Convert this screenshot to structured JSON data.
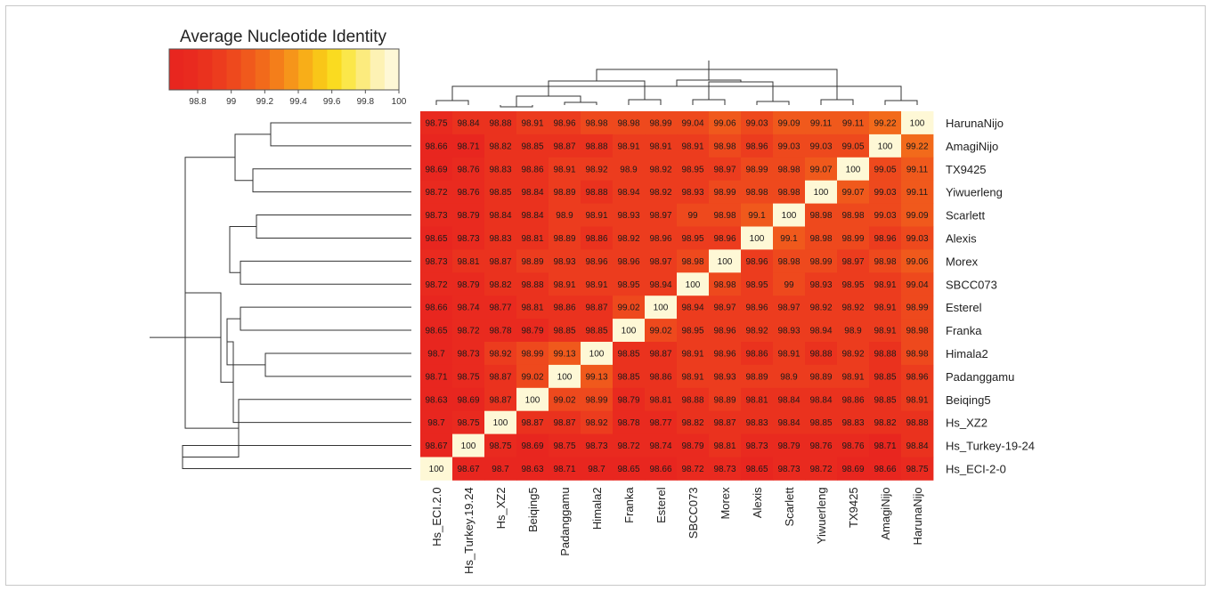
{
  "chart_data": {
    "type": "heatmap",
    "legend": {
      "title": "Average Nucleotide Identity",
      "tick_labels": [
        "98.8",
        "99",
        "99.2",
        "99.4",
        "99.6",
        "99.8",
        "100"
      ],
      "range": [
        98.63,
        100
      ],
      "palette": [
        "#e8261f",
        "#e92a1f",
        "#ea321e",
        "#ec3c1e",
        "#ee491d",
        "#f0591c",
        "#f26a1b",
        "#f47e1a",
        "#f6951a",
        "#f8ae18",
        "#f9c618",
        "#fadb20",
        "#fbe74a",
        "#fceb7e",
        "#fdf2b4",
        "#fef8d6"
      ]
    },
    "row_labels": [
      "HarunaNijo",
      "AmagiNijo",
      "TX9425",
      "Yiwuerleng",
      "Scarlett",
      "Alexis",
      "Morex",
      "SBCC073",
      "Esterel",
      "Franka",
      "Himala2",
      "Padanggamu",
      "Beiqing5",
      "Hs_XZ2",
      "Hs_Turkey-19-24",
      "Hs_ECI-2-0"
    ],
    "col_labels": [
      "Hs_ECI.2.0",
      "Hs_Turkey.19.24",
      "Hs_XZ2",
      "Beiqing5",
      "Padanggamu",
      "Himala2",
      "Franka",
      "Esterel",
      "SBCC073",
      "Morex",
      "Alexis",
      "Scarlett",
      "Yiwuerleng",
      "TX9425",
      "AmagiNijo",
      "HarunaNijo"
    ],
    "cell_text": [
      [
        "98.75",
        "98.84",
        "98.88",
        "98.91",
        "98.96",
        "98.98",
        "98.98",
        "98.99",
        "99.04",
        "99.06",
        "99.03",
        "99.09",
        "99.11",
        "99.11",
        "99.22",
        "100"
      ],
      [
        "98.66",
        "98.71",
        "98.82",
        "98.85",
        "98.87",
        "98.88",
        "98.91",
        "98.91",
        "98.91",
        "98.98",
        "98.96",
        "99.03",
        "99.03",
        "99.05",
        "100",
        "99.22"
      ],
      [
        "98.69",
        "98.76",
        "98.83",
        "98.86",
        "98.91",
        "98.92",
        "98.9",
        "98.92",
        "98.95",
        "98.97",
        "98.99",
        "98.98",
        "99.07",
        "100",
        "99.05",
        "99.11"
      ],
      [
        "98.72",
        "98.76",
        "98.85",
        "98.84",
        "98.89",
        "98.88",
        "98.94",
        "98.92",
        "98.93",
        "98.99",
        "98.98",
        "98.98",
        "100",
        "99.07",
        "99.03",
        "99.11"
      ],
      [
        "98.73",
        "98.79",
        "98.84",
        "98.84",
        "98.9",
        "98.91",
        "98.93",
        "98.97",
        "99",
        "98.98",
        "99.1",
        "100",
        "98.98",
        "98.98",
        "99.03",
        "99.09"
      ],
      [
        "98.65",
        "98.73",
        "98.83",
        "98.81",
        "98.89",
        "98.86",
        "98.92",
        "98.96",
        "98.95",
        "98.96",
        "100",
        "99.1",
        "98.98",
        "98.99",
        "98.96",
        "99.03"
      ],
      [
        "98.73",
        "98.81",
        "98.87",
        "98.89",
        "98.93",
        "98.96",
        "98.96",
        "98.97",
        "98.98",
        "100",
        "98.96",
        "98.98",
        "98.99",
        "98.97",
        "98.98",
        "99.06"
      ],
      [
        "98.72",
        "98.79",
        "98.82",
        "98.88",
        "98.91",
        "98.91",
        "98.95",
        "98.94",
        "100",
        "98.98",
        "98.95",
        "99",
        "98.93",
        "98.95",
        "98.91",
        "99.04"
      ],
      [
        "98.66",
        "98.74",
        "98.77",
        "98.81",
        "98.86",
        "98.87",
        "99.02",
        "100",
        "98.94",
        "98.97",
        "98.96",
        "98.97",
        "98.92",
        "98.92",
        "98.91",
        "98.99"
      ],
      [
        "98.65",
        "98.72",
        "98.78",
        "98.79",
        "98.85",
        "98.85",
        "100",
        "99.02",
        "98.95",
        "98.96",
        "98.92",
        "98.93",
        "98.94",
        "98.9",
        "98.91",
        "98.98"
      ],
      [
        "98.7",
        "98.73",
        "98.92",
        "98.99",
        "99.13",
        "100",
        "98.85",
        "98.87",
        "98.91",
        "98.96",
        "98.86",
        "98.91",
        "98.88",
        "98.92",
        "98.88",
        "98.98"
      ],
      [
        "98.71",
        "98.75",
        "98.87",
        "99.02",
        "100",
        "99.13",
        "98.85",
        "98.86",
        "98.91",
        "98.93",
        "98.89",
        "98.9",
        "98.89",
        "98.91",
        "98.85",
        "98.96"
      ],
      [
        "98.63",
        "98.69",
        "98.87",
        "100",
        "99.02",
        "98.99",
        "98.79",
        "98.81",
        "98.88",
        "98.89",
        "98.81",
        "98.84",
        "98.84",
        "98.86",
        "98.85",
        "98.91"
      ],
      [
        "98.7",
        "98.75",
        "100",
        "98.87",
        "98.87",
        "98.92",
        "98.78",
        "98.77",
        "98.82",
        "98.87",
        "98.83",
        "98.84",
        "98.85",
        "98.83",
        "98.82",
        "98.88"
      ],
      [
        "98.67",
        "100",
        "98.75",
        "98.69",
        "98.75",
        "98.73",
        "98.72",
        "98.74",
        "98.79",
        "98.81",
        "98.73",
        "98.79",
        "98.76",
        "98.76",
        "98.71",
        "98.84"
      ],
      [
        "100",
        "98.67",
        "98.7",
        "98.63",
        "98.71",
        "98.7",
        "98.65",
        "98.66",
        "98.72",
        "98.73",
        "98.65",
        "98.73",
        "98.72",
        "98.69",
        "98.66",
        "98.75"
      ]
    ],
    "col_dendrogram_merges": [
      [
        0,
        1
      ],
      [
        2,
        3
      ],
      [
        4,
        5
      ],
      [
        14,
        15
      ],
      [
        12,
        13
      ],
      [
        10,
        11
      ],
      [
        8,
        9
      ],
      [
        6,
        7
      ],
      [
        17,
        18
      ],
      [
        16,
        19
      ],
      [
        21,
        22
      ],
      [
        24,
        23
      ],
      [
        26,
        25
      ],
      [
        27,
        20
      ],
      [
        28,
        28
      ]
    ],
    "row_dendrogram_merges": [
      [
        0,
        1
      ],
      [
        2,
        3
      ],
      [
        4,
        5
      ],
      [
        6,
        7
      ],
      [
        8,
        9
      ],
      [
        10,
        11
      ],
      [
        14,
        15
      ],
      [
        16,
        17
      ],
      [
        18,
        19
      ],
      [
        20,
        21
      ],
      [
        22,
        12
      ],
      [
        24,
        23
      ],
      [
        25,
        26
      ],
      [
        27,
        28
      ],
      [
        29,
        30
      ]
    ]
  }
}
